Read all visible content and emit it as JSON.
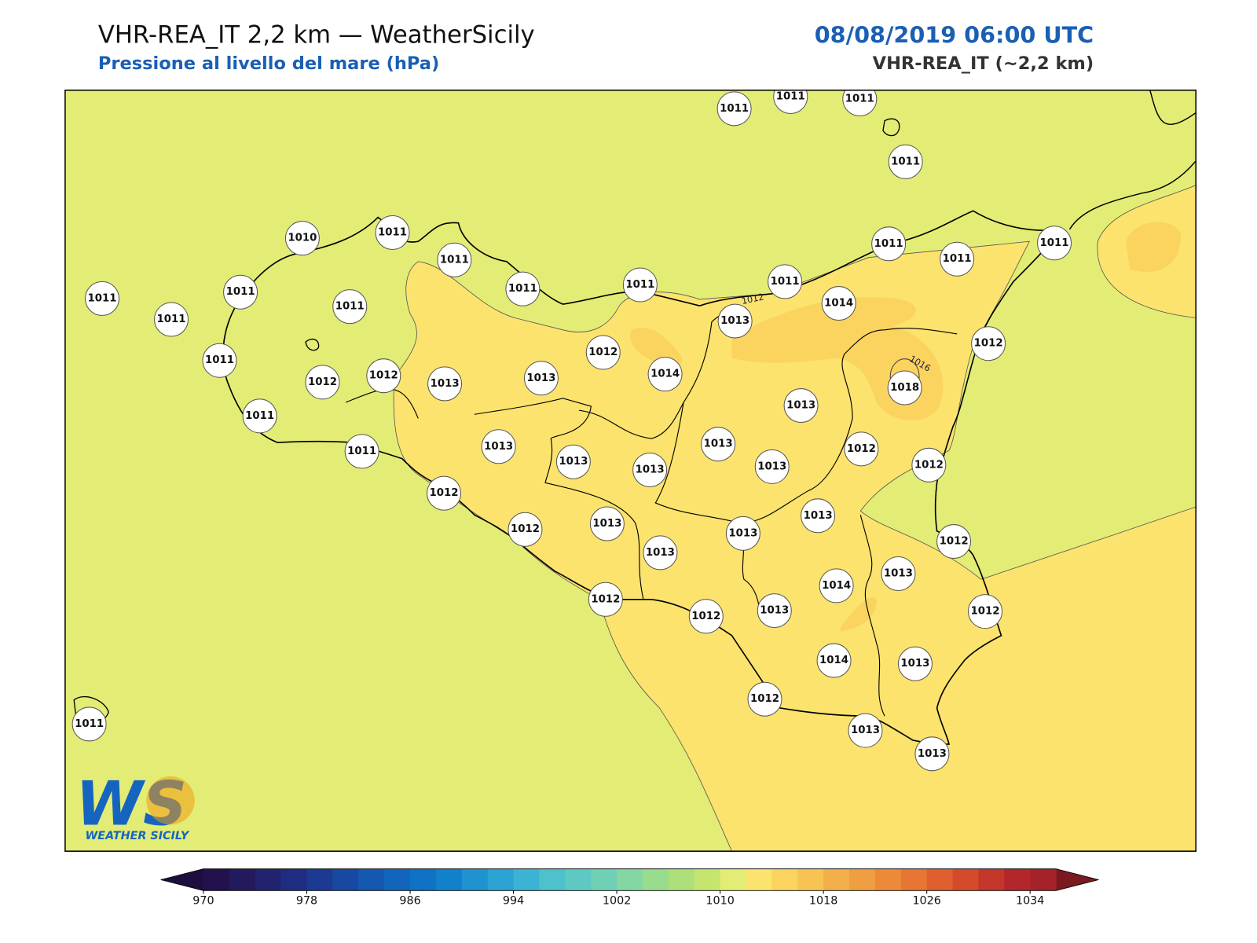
{
  "header": {
    "title": "VHR-REA_IT 2,2 km — WeatherSicily",
    "subtitle": "Pressione al livello del mare (hPa)",
    "datetime": "08/08/2019 06:00 UTC",
    "model": "VHR-REA_IT (~2,2 km)"
  },
  "map": {
    "stations": [
      1011,
      1011,
      1011,
      1011,
      1010,
      1011,
      1011,
      1011,
      1011,
      1011,
      1011,
      1011,
      1011,
      1011,
      1011,
      1011,
      1011,
      1011,
      1012,
      1012,
      1013,
      1013,
      1012,
      1014,
      1013,
      1014,
      1012,
      1018,
      1011,
      1011,
      1013,
      1013,
      1013,
      1013,
      1013,
      1013,
      1012,
      1012,
      1012,
      1012,
      1013,
      1013,
      1013,
      1013,
      1012,
      1013,
      1014,
      1012,
      1012,
      1013,
      1012,
      1014,
      1013,
      1012,
      1013,
      1013,
      1011
    ],
    "contour_labels": [
      "1012",
      "1016"
    ]
  },
  "colorbar": {
    "clim": [
      970,
      1036
    ],
    "ticks": [
      970,
      978,
      986,
      994,
      1002,
      1010,
      1018,
      1026,
      1034
    ],
    "colors": [
      "#23114e",
      "#231a5e",
      "#22236f",
      "#1f2d80",
      "#1c3a91",
      "#1849a2",
      "#1558b0",
      "#1265bb",
      "#0f72c4",
      "#1281cb",
      "#1e93d0",
      "#2ba3d3",
      "#3ab4d2",
      "#4dc1cc",
      "#5ec9c2",
      "#70d0b5",
      "#84d6a2",
      "#98dc8d",
      "#addf7a",
      "#c4e56e",
      "#e3ec74",
      "#fbe36d",
      "#fbd35f",
      "#f7c453",
      "#f3b04a",
      "#f09e42",
      "#ec8a3a",
      "#e77534",
      "#df5f2e",
      "#d44a2b",
      "#c5362a",
      "#b3262a",
      "#a6222a"
    ],
    "under": "#1e0e40",
    "over": "#7a1a1f"
  },
  "logo": {
    "mark": "WS",
    "text": "WEATHER SICILY"
  }
}
